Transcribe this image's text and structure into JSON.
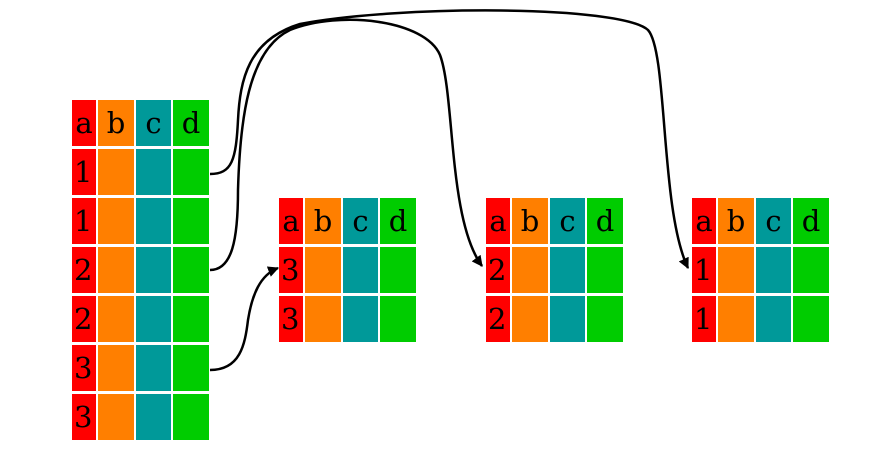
{
  "colors": {
    "col_a": "#ff0000",
    "col_b": "#ff7f00",
    "col_c": "#009999",
    "col_d": "#00cc00",
    "arrow": "#000000",
    "gap": "#ffffff"
  },
  "tables": [
    {
      "id": "source",
      "header": [
        "a",
        "b",
        "c",
        "d"
      ],
      "rows": [
        "1",
        "1",
        "2",
        "2",
        "3",
        "3"
      ]
    },
    {
      "id": "group-3",
      "header": [
        "a",
        "b",
        "c",
        "d"
      ],
      "rows": [
        "3",
        "3"
      ]
    },
    {
      "id": "group-2",
      "header": [
        "a",
        "b",
        "c",
        "d"
      ],
      "rows": [
        "2",
        "2"
      ]
    },
    {
      "id": "group-1",
      "header": [
        "a",
        "b",
        "c",
        "d"
      ],
      "rows": [
        "1",
        "1"
      ]
    }
  ],
  "arrows": [
    {
      "from": "source-row-1",
      "to": "group-1"
    },
    {
      "from": "source-row-3",
      "to": "group-2"
    },
    {
      "from": "source-row-5",
      "to": "group-3"
    }
  ]
}
